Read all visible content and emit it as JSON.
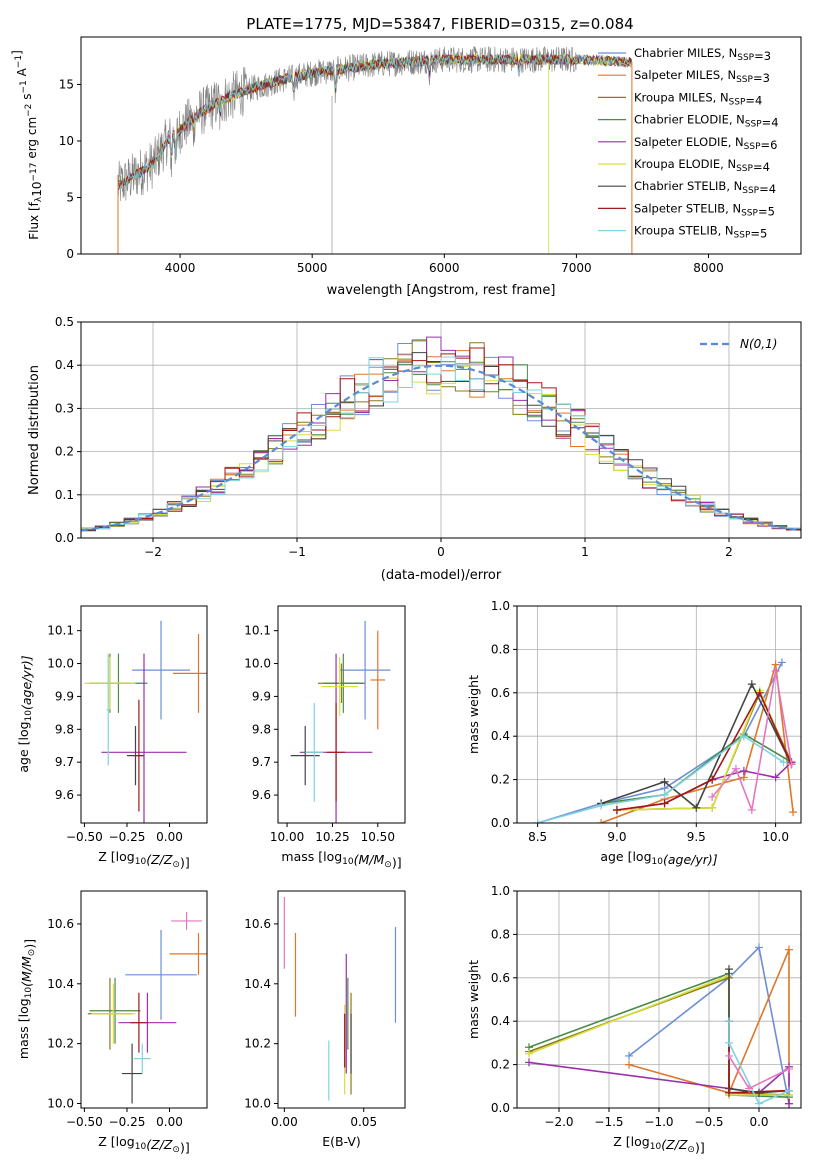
{
  "figure": {
    "title": "PLATE=1775, MJD=53847, FIBERID=0315, z=0.084"
  },
  "models": [
    {
      "name": "Chabrier MILES, N_SSP=3",
      "label_main": "Chabrier MILES, N",
      "label_sub": "SSP",
      "label_tail": "=3",
      "color": "#6b8fd6"
    },
    {
      "name": "Salpeter MILES, N_SSP=3",
      "label_main": "Salpeter MILES, N",
      "label_sub": "SSP",
      "label_tail": "=3",
      "color": "#e0762a"
    },
    {
      "name": "Kroupa MILES, N_SSP=4",
      "label_main": "Kroupa MILES, N",
      "label_sub": "SSP",
      "label_tail": "=4",
      "color": "#8a7a18"
    },
    {
      "name": "Chabrier ELODIE, N_SSP=4",
      "label_main": "Chabrier ELODIE, N",
      "label_sub": "SSP",
      "label_tail": "=4",
      "color": "#4a8a4a"
    },
    {
      "name": "Salpeter ELODIE, N_SSP=6",
      "label_main": "Salpeter ELODIE, N",
      "label_sub": "SSP",
      "label_tail": "=6",
      "color": "#9b2fae"
    },
    {
      "name": "Kroupa ELODIE, N_SSP=4",
      "label_main": "Kroupa ELODIE, N",
      "label_sub": "SSP",
      "label_tail": "=4",
      "color": "#d8df3a"
    },
    {
      "name": "Chabrier STELIB, N_SSP=4",
      "label_main": "Chabrier STELIB, N",
      "label_sub": "SSP",
      "label_tail": "=4",
      "color": "#444444"
    },
    {
      "name": "Salpeter STELIB, N_SSP=5",
      "label_main": "Salpeter STELIB, N",
      "label_sub": "SSP",
      "label_tail": "=5",
      "color": "#a01818"
    },
    {
      "name": "Kroupa STELIB, N_SSP=5",
      "label_main": "Kroupa STELIB, N",
      "label_sub": "SSP",
      "label_tail": "=5",
      "color": "#7fd3e0"
    }
  ],
  "chart_data": [
    {
      "id": "spectrum",
      "type": "line",
      "xlabel": "wavelength [Angstrom, rest frame]",
      "ylabel_parts": [
        "Flux [f",
        "λ",
        "10",
        "−17",
        " erg cm",
        "−2",
        " s",
        "−1",
        " A",
        "−1",
        "]"
      ],
      "xlim": [
        3250,
        8700
      ],
      "ylim": [
        0,
        19.2
      ],
      "xticks": [
        4000,
        5000,
        6000,
        7000,
        8000
      ],
      "yticks": [
        0,
        5,
        10,
        15
      ],
      "grid": false,
      "legend": "top-right",
      "continuum_anchors": [
        [
          3530,
          6.0
        ],
        [
          3800,
          8.0
        ],
        [
          3900,
          10.0
        ],
        [
          4000,
          11.0
        ],
        [
          4150,
          12.5
        ],
        [
          4300,
          13.5
        ],
        [
          4500,
          14.5
        ],
        [
          4800,
          15.5
        ],
        [
          5000,
          16.0
        ],
        [
          5500,
          16.8
        ],
        [
          6000,
          17.2
        ],
        [
          6500,
          17.2
        ],
        [
          7000,
          17.2
        ],
        [
          7400,
          17.0
        ],
        [
          8000,
          16.4
        ],
        [
          8700,
          16.0
        ]
      ],
      "absorption_features": [
        [
          3934,
          8.0
        ],
        [
          3968,
          8.0
        ],
        [
          4101,
          11.0
        ],
        [
          4304,
          12.0
        ],
        [
          4861,
          14.0
        ],
        [
          5175,
          13.8
        ],
        [
          5890,
          15.8
        ],
        [
          6563,
          16.0
        ]
      ],
      "model_end": 7420,
      "data_end": 7000
    },
    {
      "id": "residual-histogram",
      "type": "bar",
      "xlabel": "(data-model)/error",
      "ylabel": "Normed distribution",
      "xlim": [
        -2.5,
        2.5
      ],
      "ylim": [
        0,
        0.5
      ],
      "xticks": [
        -2,
        -1,
        0,
        1,
        2
      ],
      "yticks": [
        0.0,
        0.1,
        0.2,
        0.3,
        0.4,
        0.5
      ],
      "grid": true,
      "legend": "top-right",
      "legend_label": "N(0,1)",
      "bin_width": 0.1,
      "gaussian": {
        "mean": 0,
        "sigma": 1
      }
    },
    {
      "id": "age-vs-metallicity",
      "type": "scatter",
      "xlabel_main": "Z [log",
      "xlabel_sub": "10",
      "xlabel_tail": "(Z/Z",
      "xlabel_end": ")]",
      "ylabel_main": "age  [log",
      "ylabel_sub": "10",
      "ylabel_tail": "(age/yr)]",
      "xlim": [
        -0.52,
        0.22
      ],
      "ylim": [
        9.515,
        10.175
      ],
      "xticks": [
        -0.5,
        -0.25,
        0.0
      ],
      "xtick_labels": [
        "−0.50",
        "−0.25",
        "0.00"
      ],
      "yticks": [
        9.6,
        9.7,
        9.8,
        9.9,
        10.0,
        10.1
      ],
      "points": [
        {
          "model": 0,
          "x": -0.05,
          "y": 9.98,
          "xerr": 0.17,
          "yerr": 0.15
        },
        {
          "model": 1,
          "x": 0.17,
          "y": 9.97,
          "xerr": 0.15,
          "yerr": 0.12
        },
        {
          "model": 2,
          "x": -0.35,
          "y": 9.94,
          "xerr": 0.12,
          "yerr": 0.09
        },
        {
          "model": 3,
          "x": -0.3,
          "y": 9.94,
          "xerr": 0.17,
          "yerr": 0.09
        },
        {
          "model": 4,
          "x": -0.15,
          "y": 9.73,
          "xerr": 0.25,
          "yerr": 0.3
        },
        {
          "model": 5,
          "x": -0.35,
          "y": 9.94,
          "xerr": 0.15,
          "yerr": 0.08
        },
        {
          "model": 6,
          "x": -0.2,
          "y": 9.72,
          "xerr": 0.05,
          "yerr": 0.09
        },
        {
          "model": 7,
          "x": -0.18,
          "y": 9.72,
          "xerr": 0.02,
          "yerr": 0.17
        },
        {
          "model": 8,
          "x": -0.36,
          "y": 9.86,
          "xerr": 0.01,
          "yerr": 0.17
        }
      ]
    },
    {
      "id": "age-vs-mass",
      "type": "scatter",
      "xlabel_main": "mass [log",
      "xlabel_sub": "10",
      "xlabel_tail": "(M/M",
      "xlabel_end": ")]",
      "ylabel_main": "",
      "ylabel_sub": "",
      "ylabel_tail": "",
      "xlim": [
        9.95,
        10.65
      ],
      "ylim": [
        9.515,
        10.175
      ],
      "xticks": [
        10.0,
        10.25,
        10.5
      ],
      "xtick_labels": [
        "10.00",
        "10.25",
        "10.50"
      ],
      "yticks": [
        9.6,
        9.7,
        9.8,
        9.9,
        10.0,
        10.1
      ],
      "points": [
        {
          "model": 0,
          "x": 10.43,
          "y": 9.98,
          "xerr": 0.14,
          "yerr": 0.15
        },
        {
          "model": 1,
          "x": 10.5,
          "y": 9.95,
          "xerr": 0.04,
          "yerr": 0.15
        },
        {
          "model": 2,
          "x": 10.3,
          "y": 9.94,
          "xerr": 0.13,
          "yerr": 0.06
        },
        {
          "model": 3,
          "x": 10.31,
          "y": 9.94,
          "xerr": 0.11,
          "yerr": 0.09
        },
        {
          "model": 4,
          "x": 10.27,
          "y": 9.73,
          "xerr": 0.2,
          "yerr": 0.3
        },
        {
          "model": 5,
          "x": 10.29,
          "y": 9.93,
          "xerr": 0.1,
          "yerr": 0.09
        },
        {
          "model": 6,
          "x": 10.1,
          "y": 9.72,
          "xerr": 0.08,
          "yerr": 0.09
        },
        {
          "model": 7,
          "x": 10.27,
          "y": 9.73,
          "xerr": 0.05,
          "yerr": 0.15
        },
        {
          "model": 8,
          "x": 10.15,
          "y": 9.73,
          "xerr": 0.05,
          "yerr": 0.15
        }
      ]
    },
    {
      "id": "weight-vs-age",
      "type": "line",
      "xlabel_main": "age  [log",
      "xlabel_sub": "10",
      "xlabel_tail": "(age/yr)]",
      "ylabel": "mass weight",
      "xlim": [
        8.37,
        10.16
      ],
      "ylim": [
        0,
        1.0
      ],
      "xticks": [
        8.5,
        9.0,
        9.5,
        10.0
      ],
      "yticks": [
        0.0,
        0.2,
        0.4,
        0.6,
        0.8,
        1.0
      ],
      "grid": true,
      "series": [
        {
          "model": 0,
          "x": [
            8.5,
            8.9,
            9.3,
            9.8,
            10.04
          ],
          "y": [
            0.0,
            0.09,
            0.16,
            0.4,
            0.74
          ]
        },
        {
          "model": 1,
          "x": [
            8.9,
            9.3,
            9.8,
            10.0,
            10.11
          ],
          "y": [
            0.0,
            0.11,
            0.21,
            0.73,
            0.05
          ]
        },
        {
          "model": 2,
          "x": [
            9.0,
            9.6,
            9.9,
            10.1
          ],
          "y": [
            0.06,
            0.07,
            0.6,
            0.28
          ]
        },
        {
          "model": 3,
          "x": [
            8.9,
            9.3,
            9.8,
            10.1
          ],
          "y": [
            0.09,
            0.13,
            0.41,
            0.28
          ]
        },
        {
          "model": 4,
          "x": [
            9.0,
            9.3,
            9.6,
            9.8,
            10.0,
            10.1
          ],
          "y": [
            0.06,
            0.09,
            0.2,
            0.24,
            0.21,
            0.28
          ]
        },
        {
          "model": 5,
          "x": [
            9.0,
            9.6,
            9.9,
            10.1
          ],
          "y": [
            0.06,
            0.07,
            0.61,
            0.27
          ]
        },
        {
          "model": 6,
          "x": [
            8.9,
            9.3,
            9.5,
            9.85,
            10.1
          ],
          "y": [
            0.09,
            0.19,
            0.07,
            0.64,
            0.27
          ]
        },
        {
          "model": 7,
          "x": [
            9.0,
            9.3,
            9.6,
            9.9,
            10.1
          ],
          "y": [
            0.06,
            0.09,
            0.2,
            0.6,
            0.27
          ]
        },
        {
          "model": 8,
          "x": [
            8.5,
            8.9,
            9.3,
            9.8,
            10.05
          ],
          "y": [
            0.0,
            0.08,
            0.13,
            0.4,
            0.28
          ]
        }
      ],
      "extra_series": [
        {
          "color": "#e377c2",
          "x": [
            9.6,
            9.75,
            9.85,
            10.0,
            10.1
          ],
          "y": [
            0.12,
            0.25,
            0.06,
            0.7,
            0.27
          ]
        }
      ]
    },
    {
      "id": "mass-vs-metallicity",
      "type": "scatter",
      "xlabel_main": "Z [log",
      "xlabel_sub": "10",
      "xlabel_tail": "(Z/Z",
      "xlabel_end": ")]",
      "ylabel_main": "mass [log",
      "ylabel_sub": "10",
      "ylabel_tail": "(M/M",
      "ylabel_end": ")]",
      "xlim": [
        -0.52,
        0.22
      ],
      "ylim": [
        9.985,
        10.71
      ],
      "xticks": [
        -0.5,
        -0.25,
        0.0
      ],
      "xtick_labels": [
        "−0.50",
        "−0.25",
        "0.00"
      ],
      "yticks": [
        10.0,
        10.2,
        10.4,
        10.6
      ],
      "points": [
        {
          "model": 0,
          "x": -0.05,
          "y": 10.43,
          "xerr": 0.21,
          "yerr": 0.15
        },
        {
          "model": 1,
          "x": 0.17,
          "y": 10.5,
          "xerr": 0.17,
          "yerr": 0.07
        },
        {
          "model": 2,
          "x": -0.35,
          "y": 10.3,
          "xerr": 0.13,
          "yerr": 0.12
        },
        {
          "model": 3,
          "x": -0.32,
          "y": 10.31,
          "xerr": 0.15,
          "yerr": 0.11
        },
        {
          "model": 4,
          "x": -0.13,
          "y": 10.27,
          "xerr": 0.17,
          "yerr": 0.1
        },
        {
          "model": 5,
          "x": -0.33,
          "y": 10.3,
          "xerr": 0.13,
          "yerr": 0.1
        },
        {
          "model": 6,
          "x": -0.22,
          "y": 10.1,
          "xerr": 0.06,
          "yerr": 0.1
        },
        {
          "model": 7,
          "x": -0.18,
          "y": 10.27,
          "xerr": 0.05,
          "yerr": 0.1
        },
        {
          "model": 8,
          "x": -0.16,
          "y": 10.15,
          "xerr": 0.05,
          "yerr": 0.05
        }
      ],
      "extra_points": [
        {
          "color": "#e377c2",
          "x": 0.1,
          "y": 10.61,
          "xerr": 0.09,
          "yerr": 0.03
        }
      ]
    },
    {
      "id": "mass-vs-reddening",
      "type": "scatter",
      "xlabel": "E(B-V)",
      "xlim": [
        -0.004,
        0.076
      ],
      "ylim": [
        9.985,
        10.71
      ],
      "xticks": [
        0.0,
        0.05
      ],
      "xtick_labels": [
        "0.00",
        "0.05"
      ],
      "yticks": [
        10.0,
        10.2,
        10.4,
        10.6
      ],
      "points": [
        {
          "model": 0,
          "x": 0.07,
          "y": 10.43,
          "xerr": 0,
          "yerr": 0.16
        },
        {
          "model": 1,
          "x": 0.007,
          "y": 10.43,
          "xerr": 0,
          "yerr": 0.14
        },
        {
          "model": 2,
          "x": 0.042,
          "y": 10.2,
          "xerr": 0,
          "yerr": 0.17
        },
        {
          "model": 3,
          "x": 0.04,
          "y": 10.3,
          "xerr": 0,
          "yerr": 0.12
        },
        {
          "model": 4,
          "x": 0.039,
          "y": 10.3,
          "xerr": 0,
          "yerr": 0.2
        },
        {
          "model": 5,
          "x": 0.038,
          "y": 10.18,
          "xerr": 0,
          "yerr": 0.15
        },
        {
          "model": 6,
          "x": 0.042,
          "y": 10.2,
          "xerr": 0,
          "yerr": 0.1
        },
        {
          "model": 7,
          "x": 0.038,
          "y": 10.21,
          "xerr": 0,
          "yerr": 0.09
        },
        {
          "model": 8,
          "x": 0.028,
          "y": 10.11,
          "xerr": 0,
          "yerr": 0.1
        }
      ],
      "extra_points": [
        {
          "color": "#e377c2",
          "x": 0.0,
          "y": 10.57,
          "xerr": 0,
          "yerr": 0.12
        }
      ]
    },
    {
      "id": "weight-vs-metallicity",
      "type": "line",
      "xlabel_main": "Z [log",
      "xlabel_sub": "10",
      "xlabel_tail": "(Z/Z",
      "xlabel_end": ")]",
      "ylabel": "mass weight",
      "xlim": [
        -2.42,
        0.42
      ],
      "ylim": [
        0,
        1.0
      ],
      "xticks": [
        -2.0,
        -1.5,
        -1.0,
        -0.5,
        0.0
      ],
      "xtick_labels": [
        "−2.0",
        "−1.5",
        "−1.0",
        "−0.5",
        "0.0"
      ],
      "yticks": [
        0.0,
        0.2,
        0.4,
        0.6,
        0.8,
        1.0
      ],
      "grid": true,
      "series": [
        {
          "model": 0,
          "x": [
            -1.3,
            -0.3,
            0.0,
            0.3
          ],
          "y": [
            0.24,
            0.6,
            0.74,
            0.02
          ]
        },
        {
          "model": 1,
          "x": [
            -1.3,
            -0.3,
            0.3,
            0.3
          ],
          "y": [
            0.2,
            0.07,
            0.73,
            0.02
          ]
        },
        {
          "model": 2,
          "x": [
            -2.3,
            -0.3,
            -0.3,
            0.3
          ],
          "y": [
            0.26,
            0.6,
            0.07,
            0.06
          ]
        },
        {
          "model": 3,
          "x": [
            -2.3,
            -0.3,
            -0.3,
            0.3
          ],
          "y": [
            0.28,
            0.62,
            0.06,
            0.05
          ]
        },
        {
          "model": 4,
          "x": [
            -2.3,
            -0.3,
            0.0,
            0.3,
            0.3
          ],
          "y": [
            0.21,
            0.09,
            0.07,
            0.19,
            0.02
          ]
        },
        {
          "model": 5,
          "x": [
            -2.3,
            -0.3,
            -0.3,
            0.3
          ],
          "y": [
            0.25,
            0.61,
            0.06,
            0.06
          ]
        },
        {
          "model": 6,
          "x": [
            -0.3,
            -0.3,
            0.0,
            0.3
          ],
          "y": [
            0.64,
            0.09,
            0.07,
            0.08
          ]
        },
        {
          "model": 7,
          "x": [
            -0.3,
            -0.3,
            0.3
          ],
          "y": [
            0.4,
            0.07,
            0.08
          ]
        },
        {
          "model": 8,
          "x": [
            -0.3,
            -0.3,
            0.0,
            0.3
          ],
          "y": [
            0.4,
            0.3,
            0.02,
            0.08
          ]
        }
      ],
      "extra_series": [
        {
          "color": "#e377c2",
          "x": [
            -0.3,
            -0.1,
            0.3
          ],
          "y": [
            0.24,
            0.09,
            0.18
          ]
        }
      ]
    }
  ]
}
